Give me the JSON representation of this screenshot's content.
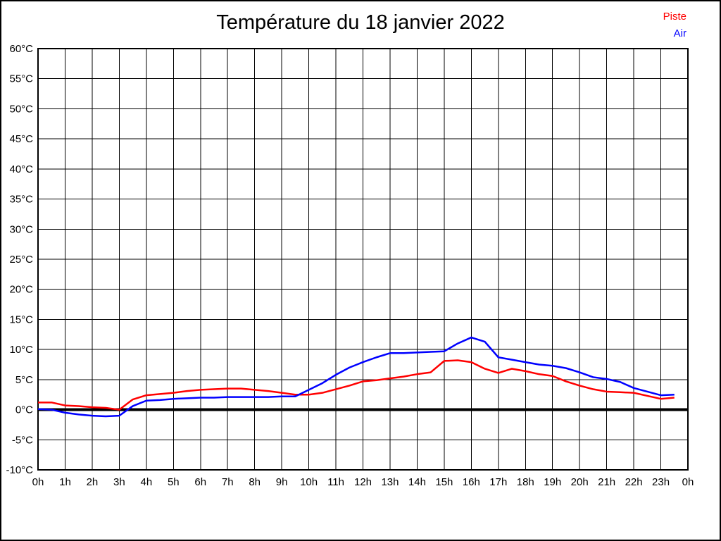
{
  "title": "Température du 18 janvier 2022",
  "legend": {
    "piste_label": "Piste",
    "air_label": "Air"
  },
  "colors": {
    "piste": "#ff0000",
    "air": "#0000ff",
    "grid": "#000000",
    "zero_line": "#000000",
    "background": "#ffffff",
    "border": "#000000"
  },
  "chart_data": {
    "type": "line",
    "title": "Température du 18 janvier 2022",
    "xlabel": "",
    "ylabel": "",
    "xlim": [
      0,
      24
    ],
    "ylim": [
      -10,
      60
    ],
    "grid": true,
    "zero_line": true,
    "legend_position": "top-right",
    "x_ticks": [
      "0h",
      "1h",
      "2h",
      "3h",
      "4h",
      "5h",
      "6h",
      "7h",
      "8h",
      "9h",
      "10h",
      "11h",
      "12h",
      "13h",
      "14h",
      "15h",
      "16h",
      "17h",
      "18h",
      "19h",
      "20h",
      "21h",
      "22h",
      "23h",
      "0h"
    ],
    "y_ticks": [
      "60°C",
      "55°C",
      "50°C",
      "45°C",
      "40°C",
      "35°C",
      "30°C",
      "25°C",
      "20°C",
      "15°C",
      "10°C",
      "5°C",
      "0°C",
      "-5°C",
      "-10°C"
    ],
    "y_tick_values": [
      60,
      55,
      50,
      45,
      40,
      35,
      30,
      25,
      20,
      15,
      10,
      5,
      0,
      -5,
      -10
    ],
    "x_tick_values": [
      0,
      1,
      2,
      3,
      4,
      5,
      6,
      7,
      8,
      9,
      10,
      11,
      12,
      13,
      14,
      15,
      16,
      17,
      18,
      19,
      20,
      21,
      22,
      23,
      24
    ],
    "x": [
      0,
      0.5,
      1,
      1.5,
      2,
      2.5,
      3,
      3.5,
      4,
      4.5,
      5,
      5.5,
      6,
      6.5,
      7,
      7.5,
      8,
      8.5,
      9,
      9.5,
      10,
      10.5,
      11,
      11.5,
      12,
      12.5,
      13,
      13.5,
      14,
      14.5,
      15,
      15.5,
      16,
      16.5,
      17,
      17.5,
      18,
      18.5,
      19,
      19.5,
      20,
      20.5,
      21,
      21.5,
      22,
      22.5,
      23,
      23.5
    ],
    "series": [
      {
        "name": "Piste",
        "color": "#ff0000",
        "values": [
          1.2,
          1.2,
          0.7,
          0.6,
          0.4,
          0.3,
          0.0,
          1.7,
          2.4,
          2.6,
          2.8,
          3.1,
          3.3,
          3.4,
          3.5,
          3.5,
          3.3,
          3.1,
          2.8,
          2.5,
          2.5,
          2.8,
          3.4,
          4.0,
          4.7,
          4.9,
          5.2,
          5.5,
          5.9,
          6.2,
          8.1,
          8.2,
          7.9,
          6.8,
          6.1,
          6.8,
          6.4,
          5.9,
          5.6,
          4.7,
          4.0,
          3.4,
          3.0,
          2.9,
          2.8,
          2.3,
          1.8,
          2.0
        ]
      },
      {
        "name": "Air",
        "color": "#0000ff",
        "values": [
          0.1,
          0.0,
          -0.5,
          -0.8,
          -1.0,
          -1.1,
          -1.0,
          0.6,
          1.5,
          1.6,
          1.8,
          1.9,
          2.0,
          2.0,
          2.1,
          2.1,
          2.1,
          2.1,
          2.2,
          2.2,
          3.3,
          4.4,
          5.8,
          7.0,
          7.9,
          8.7,
          9.4,
          9.4,
          9.5,
          9.6,
          9.7,
          11.0,
          12.0,
          11.3,
          8.7,
          8.3,
          7.9,
          7.5,
          7.3,
          6.9,
          6.2,
          5.4,
          5.1,
          4.6,
          3.6,
          3.0,
          2.4,
          2.5
        ]
      }
    ]
  }
}
